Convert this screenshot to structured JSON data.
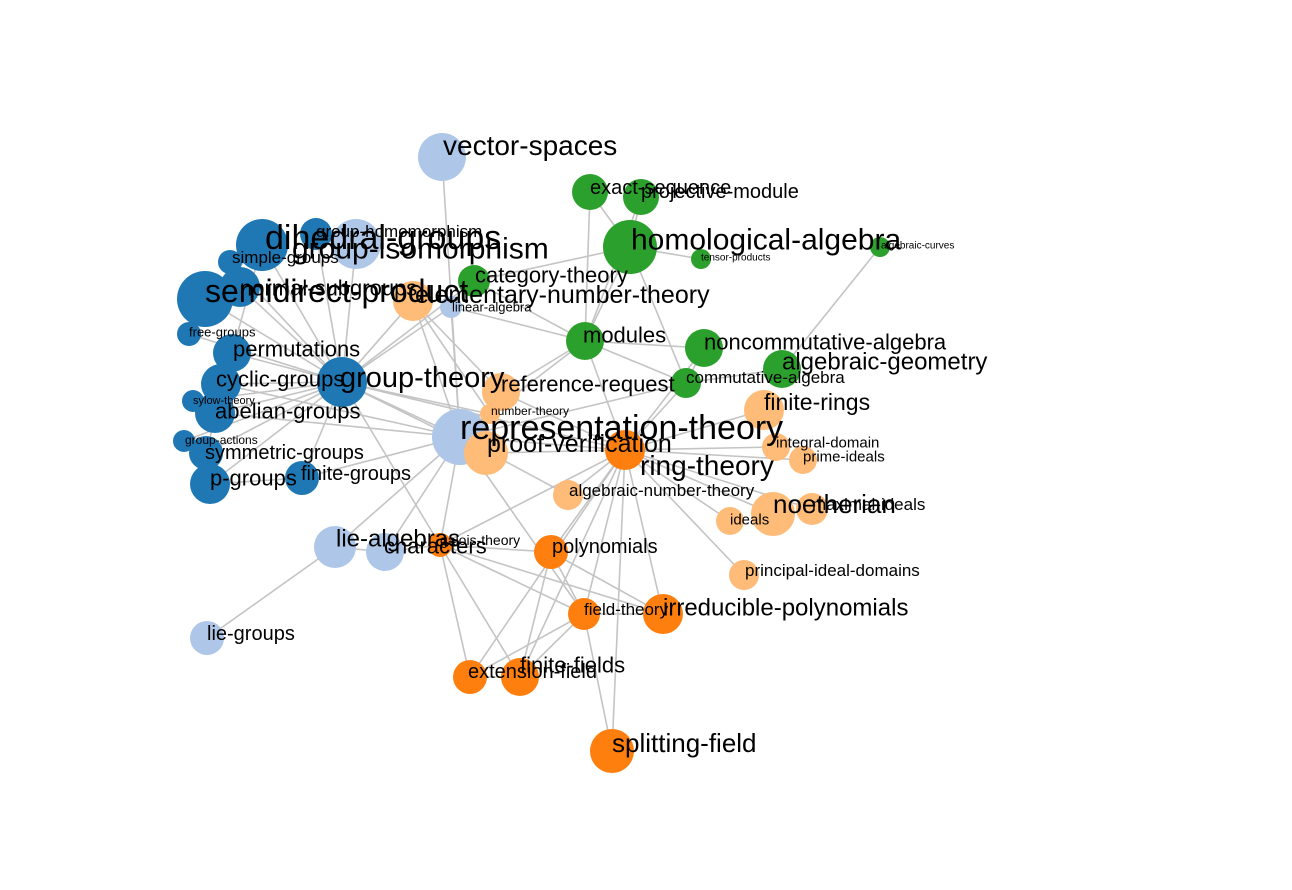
{
  "colors": {
    "dark-blue": "#1f77b4",
    "light-blue": "#aec7e8",
    "green": "#2ca02c",
    "orange": "#ff7f0e",
    "light-orange": "#ffbb78",
    "edge": "#c4c4c4"
  },
  "nodes": [
    {
      "id": "vector-spaces",
      "label": "vector-spaces",
      "group": "light-blue"
    },
    {
      "id": "dihedral-groups",
      "label": "dihedral-groups",
      "group": "dark-blue"
    },
    {
      "id": "group-isomorphism",
      "label": "group-isomorphism",
      "group": "light-blue"
    },
    {
      "id": "group-homomorphism",
      "label": "group-homomorphism",
      "group": "dark-blue"
    },
    {
      "id": "simple-groups",
      "label": "simple-groups",
      "group": "dark-blue"
    },
    {
      "id": "semidirect-product",
      "label": "semidirect-product",
      "group": "dark-blue"
    },
    {
      "id": "normal-subgroups",
      "label": "normal-subgroups",
      "group": "dark-blue"
    },
    {
      "id": "free-groups",
      "label": "free-groups",
      "group": "dark-blue"
    },
    {
      "id": "permutations",
      "label": "permutations",
      "group": "dark-blue"
    },
    {
      "id": "cyclic-groups",
      "label": "cyclic-groups",
      "group": "dark-blue"
    },
    {
      "id": "group-theory",
      "label": "group-theory",
      "group": "dark-blue"
    },
    {
      "id": "sylow-theory",
      "label": "sylow-theory",
      "group": "dark-blue"
    },
    {
      "id": "abelian-groups",
      "label": "abelian-groups",
      "group": "dark-blue"
    },
    {
      "id": "group-actions",
      "label": "group-actions",
      "group": "dark-blue"
    },
    {
      "id": "symmetric-groups",
      "label": "symmetric-groups",
      "group": "dark-blue"
    },
    {
      "id": "finite-groups",
      "label": "finite-groups",
      "group": "dark-blue"
    },
    {
      "id": "p-groups",
      "label": "p-groups",
      "group": "dark-blue"
    },
    {
      "id": "representation-theory",
      "label": "representation-theory",
      "group": "light-blue"
    },
    {
      "id": "linear-algebra",
      "label": "linear-algebra",
      "group": "light-blue"
    },
    {
      "id": "lie-algebras",
      "label": "lie-algebras",
      "group": "light-blue"
    },
    {
      "id": "characters",
      "label": "characters",
      "group": "light-blue"
    },
    {
      "id": "lie-groups",
      "label": "lie-groups",
      "group": "light-blue"
    },
    {
      "id": "exact-sequence",
      "label": "exact-sequence",
      "group": "green"
    },
    {
      "id": "projective-module",
      "label": "projective-module",
      "group": "green"
    },
    {
      "id": "homological-algebra",
      "label": "homological-algebra",
      "group": "green"
    },
    {
      "id": "tensor-products",
      "label": "tensor-products",
      "group": "green"
    },
    {
      "id": "algebraic-curves",
      "label": "algebraic-curves",
      "group": "green"
    },
    {
      "id": "category-theory",
      "label": "category-theory",
      "group": "green"
    },
    {
      "id": "modules",
      "label": "modules",
      "group": "green"
    },
    {
      "id": "noncommutative-algebra",
      "label": "noncommutative-algebra",
      "group": "green"
    },
    {
      "id": "algebraic-geometry",
      "label": "algebraic-geometry",
      "group": "green"
    },
    {
      "id": "commutative-algebra",
      "label": "commutative-algebra",
      "group": "green"
    },
    {
      "id": "elementary-number-theory",
      "label": "elementary-number-theory",
      "group": "light-orange"
    },
    {
      "id": "reference-request",
      "label": "reference-request",
      "group": "light-orange"
    },
    {
      "id": "number-theory",
      "label": "number-theory",
      "group": "light-orange"
    },
    {
      "id": "proof-verification",
      "label": "proof-verification",
      "group": "light-orange"
    },
    {
      "id": "finite-rings",
      "label": "finite-rings",
      "group": "light-orange"
    },
    {
      "id": "integral-domain",
      "label": "integral-domain",
      "group": "light-orange"
    },
    {
      "id": "prime-ideals",
      "label": "prime-ideals",
      "group": "light-orange"
    },
    {
      "id": "algebraic-number-theory",
      "label": "algebraic-number-theory",
      "group": "light-orange"
    },
    {
      "id": "noetherian",
      "label": "noetherian",
      "group": "light-orange"
    },
    {
      "id": "maximal-ideals",
      "label": "maximal-ideals",
      "group": "light-orange"
    },
    {
      "id": "ideals",
      "label": "ideals",
      "group": "light-orange"
    },
    {
      "id": "principal-ideal-domains",
      "label": "principal-ideal-domains",
      "group": "light-orange"
    },
    {
      "id": "ring-theory",
      "label": "ring-theory",
      "group": "orange"
    },
    {
      "id": "galois-theory",
      "label": "galois-theory",
      "group": "orange"
    },
    {
      "id": "polynomials",
      "label": "polynomials",
      "group": "orange"
    },
    {
      "id": "field-theory",
      "label": "field-theory",
      "group": "orange"
    },
    {
      "id": "irreducible-polynomials",
      "label": "irreducible-polynomials",
      "group": "orange"
    },
    {
      "id": "extension-field",
      "label": "extension-field",
      "group": "orange"
    },
    {
      "id": "finite-fields",
      "label": "finite-fields",
      "group": "orange"
    },
    {
      "id": "splitting-field",
      "label": "splitting-field",
      "group": "orange"
    }
  ],
  "edges": [
    [
      "vector-spaces",
      "representation-theory"
    ],
    [
      "representation-theory",
      "group-theory"
    ],
    [
      "representation-theory",
      "ring-theory"
    ],
    [
      "representation-theory",
      "proof-verification"
    ],
    [
      "representation-theory",
      "reference-request"
    ],
    [
      "representation-theory",
      "lie-algebras"
    ],
    [
      "representation-theory",
      "characters"
    ],
    [
      "representation-theory",
      "finite-groups"
    ],
    [
      "representation-theory",
      "abelian-groups"
    ],
    [
      "representation-theory",
      "cyclic-groups"
    ],
    [
      "representation-theory",
      "modules"
    ],
    [
      "representation-theory",
      "linear-algebra"
    ],
    [
      "representation-theory",
      "commutative-algebra"
    ],
    [
      "representation-theory",
      "number-theory"
    ],
    [
      "representation-theory",
      "galois-theory"
    ],
    [
      "representation-theory",
      "field-theory"
    ],
    [
      "representation-theory",
      "algebraic-number-theory"
    ],
    [
      "representation-theory",
      "elementary-number-theory"
    ],
    [
      "group-theory",
      "dihedral-groups"
    ],
    [
      "group-theory",
      "group-isomorphism"
    ],
    [
      "group-theory",
      "group-homomorphism"
    ],
    [
      "group-theory",
      "simple-groups"
    ],
    [
      "group-theory",
      "semidirect-product"
    ],
    [
      "group-theory",
      "normal-subgroups"
    ],
    [
      "group-theory",
      "free-groups"
    ],
    [
      "group-theory",
      "permutations"
    ],
    [
      "group-theory",
      "cyclic-groups"
    ],
    [
      "group-theory",
      "sylow-theory"
    ],
    [
      "group-theory",
      "abelian-groups"
    ],
    [
      "group-theory",
      "group-actions"
    ],
    [
      "group-theory",
      "symmetric-groups"
    ],
    [
      "group-theory",
      "finite-groups"
    ],
    [
      "group-theory",
      "p-groups"
    ],
    [
      "group-theory",
      "elementary-number-theory"
    ],
    [
      "group-theory",
      "ring-theory"
    ],
    [
      "group-theory",
      "linear-algebra"
    ],
    [
      "group-theory",
      "category-theory"
    ],
    [
      "group-theory",
      "proof-verification"
    ],
    [
      "group-theory",
      "number-theory"
    ],
    [
      "group-theory",
      "galois-theory"
    ],
    [
      "dihedral-groups",
      "semidirect-product"
    ],
    [
      "dihedral-groups",
      "permutations"
    ],
    [
      "group-isomorphism",
      "group-homomorphism"
    ],
    [
      "normal-subgroups",
      "semidirect-product"
    ],
    [
      "symmetric-groups",
      "permutations"
    ],
    [
      "p-groups",
      "finite-groups"
    ],
    [
      "category-theory",
      "modules"
    ],
    [
      "category-theory",
      "homological-algebra"
    ],
    [
      "modules",
      "homological-algebra"
    ],
    [
      "modules",
      "exact-sequence"
    ],
    [
      "modules",
      "projective-module"
    ],
    [
      "modules",
      "commutative-algebra"
    ],
    [
      "modules",
      "noncommutative-algebra"
    ],
    [
      "modules",
      "ring-theory"
    ],
    [
      "modules",
      "linear-algebra"
    ],
    [
      "modules",
      "reference-request"
    ],
    [
      "homological-algebra",
      "exact-sequence"
    ],
    [
      "homological-algebra",
      "projective-module"
    ],
    [
      "homological-algebra",
      "tensor-products"
    ],
    [
      "homological-algebra",
      "commutative-algebra"
    ],
    [
      "noncommutative-algebra",
      "ring-theory"
    ],
    [
      "noncommutative-algebra",
      "commutative-algebra"
    ],
    [
      "commutative-algebra",
      "algebraic-geometry"
    ],
    [
      "commutative-algebra",
      "ring-theory"
    ],
    [
      "algebraic-geometry",
      "algebraic-curves"
    ],
    [
      "ring-theory",
      "finite-rings"
    ],
    [
      "ring-theory",
      "integral-domain"
    ],
    [
      "ring-theory",
      "prime-ideals"
    ],
    [
      "ring-theory",
      "noetherian"
    ],
    [
      "ring-theory",
      "maximal-ideals"
    ],
    [
      "ring-theory",
      "ideals"
    ],
    [
      "ring-theory",
      "principal-ideal-domains"
    ],
    [
      "ring-theory",
      "polynomials"
    ],
    [
      "ring-theory",
      "field-theory"
    ],
    [
      "ring-theory",
      "irreducible-polynomials"
    ],
    [
      "ring-theory",
      "finite-fields"
    ],
    [
      "ring-theory",
      "algebraic-number-theory"
    ],
    [
      "ring-theory",
      "extension-field"
    ],
    [
      "ring-theory",
      "splitting-field"
    ],
    [
      "ring-theory",
      "proof-verification"
    ],
    [
      "ring-theory",
      "reference-request"
    ],
    [
      "ring-theory",
      "galois-theory"
    ],
    [
      "galois-theory",
      "polynomials"
    ],
    [
      "galois-theory",
      "field-theory"
    ],
    [
      "galois-theory",
      "irreducible-polynomials"
    ],
    [
      "galois-theory",
      "extension-field"
    ],
    [
      "galois-theory",
      "finite-fields"
    ],
    [
      "galois-theory",
      "characters"
    ],
    [
      "polynomials",
      "field-theory"
    ],
    [
      "polynomials",
      "irreducible-polynomials"
    ],
    [
      "polynomials",
      "finite-fields"
    ],
    [
      "field-theory",
      "extension-field"
    ],
    [
      "field-theory",
      "finite-fields"
    ],
    [
      "field-theory",
      "splitting-field"
    ],
    [
      "field-theory",
      "irreducible-polynomials"
    ],
    [
      "extension-field",
      "finite-fields"
    ],
    [
      "lie-algebras",
      "lie-groups"
    ],
    [
      "lie-algebras",
      "characters"
    ],
    [
      "elementary-number-theory",
      "number-theory"
    ],
    [
      "elementary-number-theory",
      "reference-request"
    ]
  ]
}
